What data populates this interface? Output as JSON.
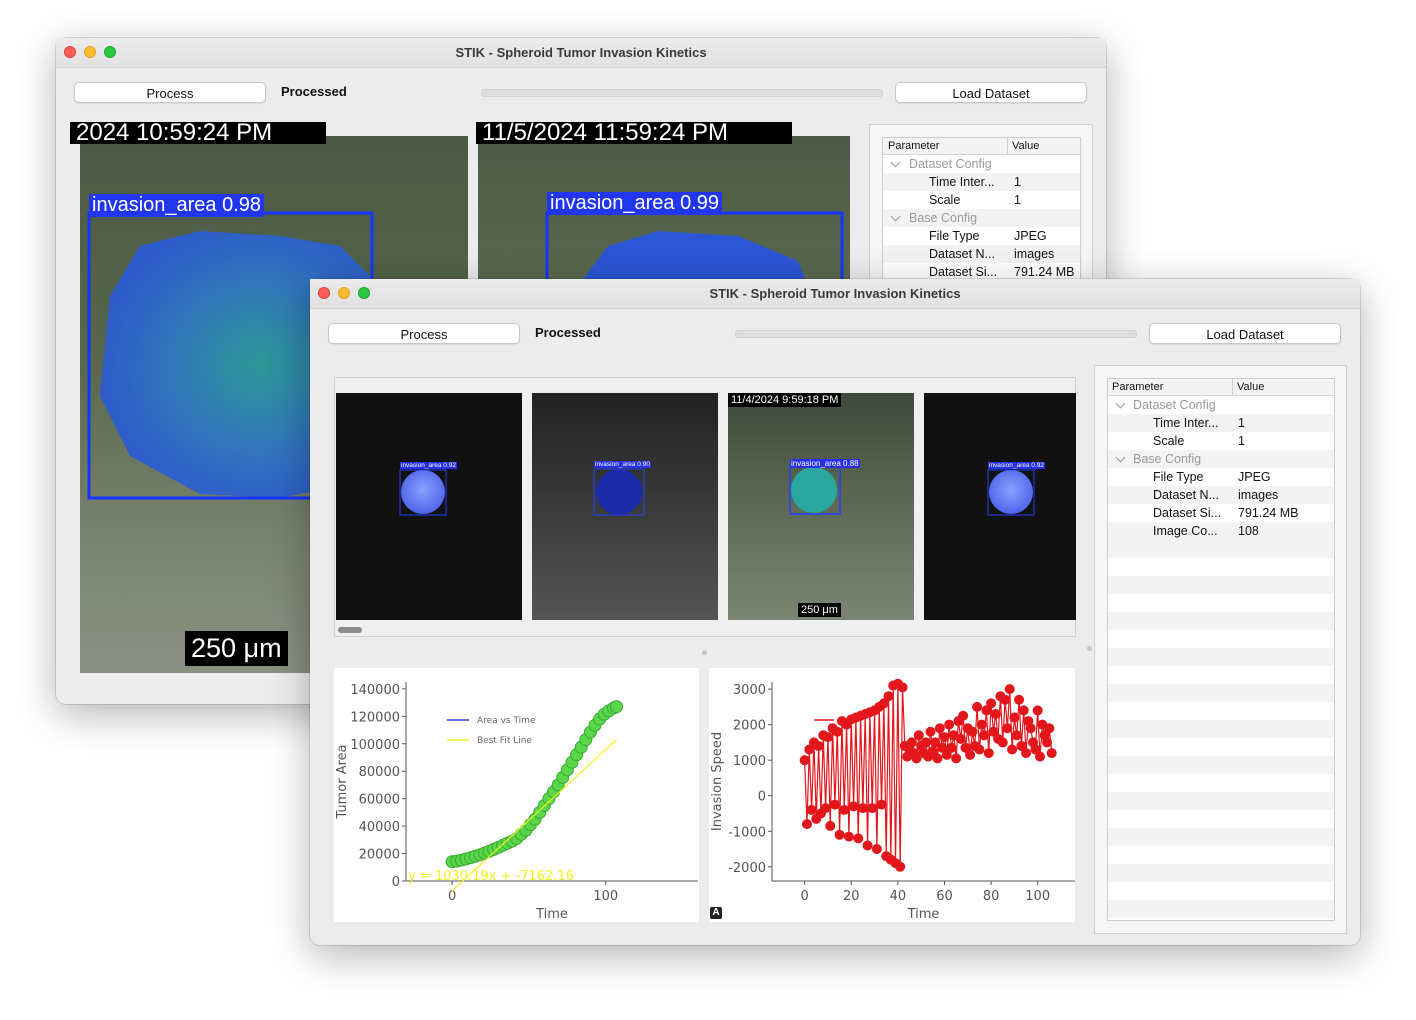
{
  "app": {
    "title": "STIK - Spheroid Tumor Invasion Kinetics"
  },
  "toolbar": {
    "process_label": "Process",
    "status_text": "Processed",
    "load_label": "Load Dataset",
    "progress": 0
  },
  "param_table": {
    "headers": [
      "Parameter",
      "Value"
    ],
    "groups": [
      {
        "label": "Dataset Config",
        "rows": [
          {
            "key": "Time Inter...",
            "value": "1"
          },
          {
            "key": "Scale",
            "value": "1"
          }
        ]
      },
      {
        "label": "Base Config",
        "rows": [
          {
            "key": "File Type",
            "value": "JPEG"
          },
          {
            "key": "Dataset N...",
            "value": "images"
          },
          {
            "key": "Dataset Si...",
            "value": "791.24 MB"
          },
          {
            "key": "Image Co...",
            "value": "108"
          }
        ]
      }
    ]
  },
  "back_window": {
    "timestamp_left": "2024 10:59:24 PM",
    "timestamp_right": "11/5/2024 11:59:24 PM",
    "detection_left": "invasion_area 0.98",
    "detection_right": "invasion_area 0.99",
    "scale_bar": "250 μm"
  },
  "thumbnails": [
    {
      "label": "invasion_area 0.92",
      "timestamp": "",
      "scale": ""
    },
    {
      "label": "invasion_area 0.90",
      "timestamp": "",
      "scale": ""
    },
    {
      "label": "invasion_area 0.88",
      "timestamp": "11/4/2024 9:59:18 PM",
      "scale": "250 μm"
    },
    {
      "label": "invasion_area 0.92",
      "timestamp": "",
      "scale": ""
    }
  ],
  "chart_data": [
    {
      "type": "scatter",
      "xlabel": "Time",
      "ylabel": "Tumor Area",
      "xlim": [
        -30,
        160
      ],
      "ylim": [
        0,
        145000
      ],
      "xticks": [
        0,
        100
      ],
      "yticks": [
        0,
        20000,
        40000,
        60000,
        80000,
        100000,
        120000,
        140000
      ],
      "legend": [
        "Area vs Time",
        "Best Fit Line"
      ],
      "fit_label": "y = 1030.19x + -7162.16",
      "fit": {
        "slope": 1030.19,
        "intercept": -7162.16,
        "x_range": [
          0,
          107
        ]
      },
      "series": [
        {
          "name": "Area vs Time",
          "color": "#5ad64a",
          "x": [
            0,
            3,
            6,
            9,
            12,
            15,
            18,
            21,
            24,
            27,
            30,
            33,
            36,
            39,
            42,
            45,
            48,
            51,
            54,
            57,
            60,
            63,
            66,
            69,
            72,
            75,
            78,
            81,
            84,
            87,
            90,
            93,
            96,
            99,
            102,
            105,
            107
          ],
          "y": [
            14000,
            14500,
            15200,
            16000,
            17000,
            18000,
            19000,
            20300,
            21600,
            23000,
            24500,
            26000,
            27500,
            29000,
            31000,
            34000,
            37000,
            41000,
            45000,
            50000,
            55000,
            60000,
            65000,
            70000,
            75500,
            81000,
            86500,
            92000,
            97500,
            103000,
            108500,
            113500,
            118000,
            121500,
            124000,
            126000,
            127000
          ]
        }
      ]
    },
    {
      "type": "line",
      "xlabel": "Time",
      "ylabel": "Invasion Speed",
      "xlim": [
        -14,
        116
      ],
      "ylim": [
        -2400,
        3200
      ],
      "xticks": [
        0,
        20,
        40,
        60,
        80,
        100
      ],
      "yticks": [
        -2000,
        -1000,
        0,
        1000,
        2000,
        3000
      ],
      "legend": [
        ""
      ],
      "series": [
        {
          "name": "",
          "color": "#e3161c",
          "x": [
            0,
            1,
            2,
            3,
            4,
            5,
            6,
            7,
            8,
            9,
            10,
            11,
            12,
            13,
            14,
            15,
            16,
            17,
            18,
            19,
            20,
            21,
            22,
            23,
            24,
            25,
            26,
            27,
            28,
            29,
            30,
            31,
            32,
            33,
            34,
            35,
            36,
            37,
            38,
            39,
            40,
            41,
            42,
            43,
            44,
            45,
            46,
            47,
            48,
            49,
            50,
            51,
            52,
            53,
            54,
            55,
            56,
            57,
            58,
            59,
            60,
            61,
            62,
            63,
            64,
            65,
            66,
            67,
            68,
            69,
            70,
            71,
            72,
            73,
            74,
            75,
            76,
            77,
            78,
            79,
            80,
            81,
            82,
            83,
            84,
            85,
            86,
            87,
            88,
            89,
            90,
            91,
            92,
            93,
            94,
            95,
            96,
            97,
            98,
            99,
            100,
            101,
            102,
            103,
            104,
            105,
            106
          ],
          "y": [
            1000,
            -800,
            1300,
            -400,
            1500,
            -650,
            1400,
            -500,
            1700,
            -350,
            1650,
            -850,
            1900,
            -250,
            1800,
            -1100,
            2100,
            -400,
            2000,
            -1150,
            2150,
            -300,
            2200,
            -1200,
            2250,
            -350,
            2300,
            -1400,
            2350,
            -350,
            2400,
            -1500,
            2500,
            -250,
            2600,
            -1700,
            2800,
            -1800,
            3100,
            -1900,
            3150,
            -2000,
            3050,
            1400,
            1100,
            1300,
            1500,
            1200,
            1050,
            1700,
            1400,
            1200,
            1500,
            1100,
            1800,
            1250,
            1500,
            1050,
            1900,
            1350,
            1650,
            1150,
            2000,
            1350,
            1700,
            1050,
            2100,
            1600,
            2250,
            1350,
            1900,
            1150,
            1800,
            1400,
            2500,
            1300,
            2000,
            1700,
            2400,
            1200,
            2600,
            1800,
            2300,
            1600,
            2800,
            1500,
            2700,
            1900,
            3000,
            1300,
            2200,
            1700,
            2700,
            1400,
            2400,
            1200,
            2100,
            1900,
            1500,
            1300,
            2400,
            1100,
            2000,
            1700,
            1500,
            1900,
            1200
          ]
        }
      ]
    }
  ]
}
